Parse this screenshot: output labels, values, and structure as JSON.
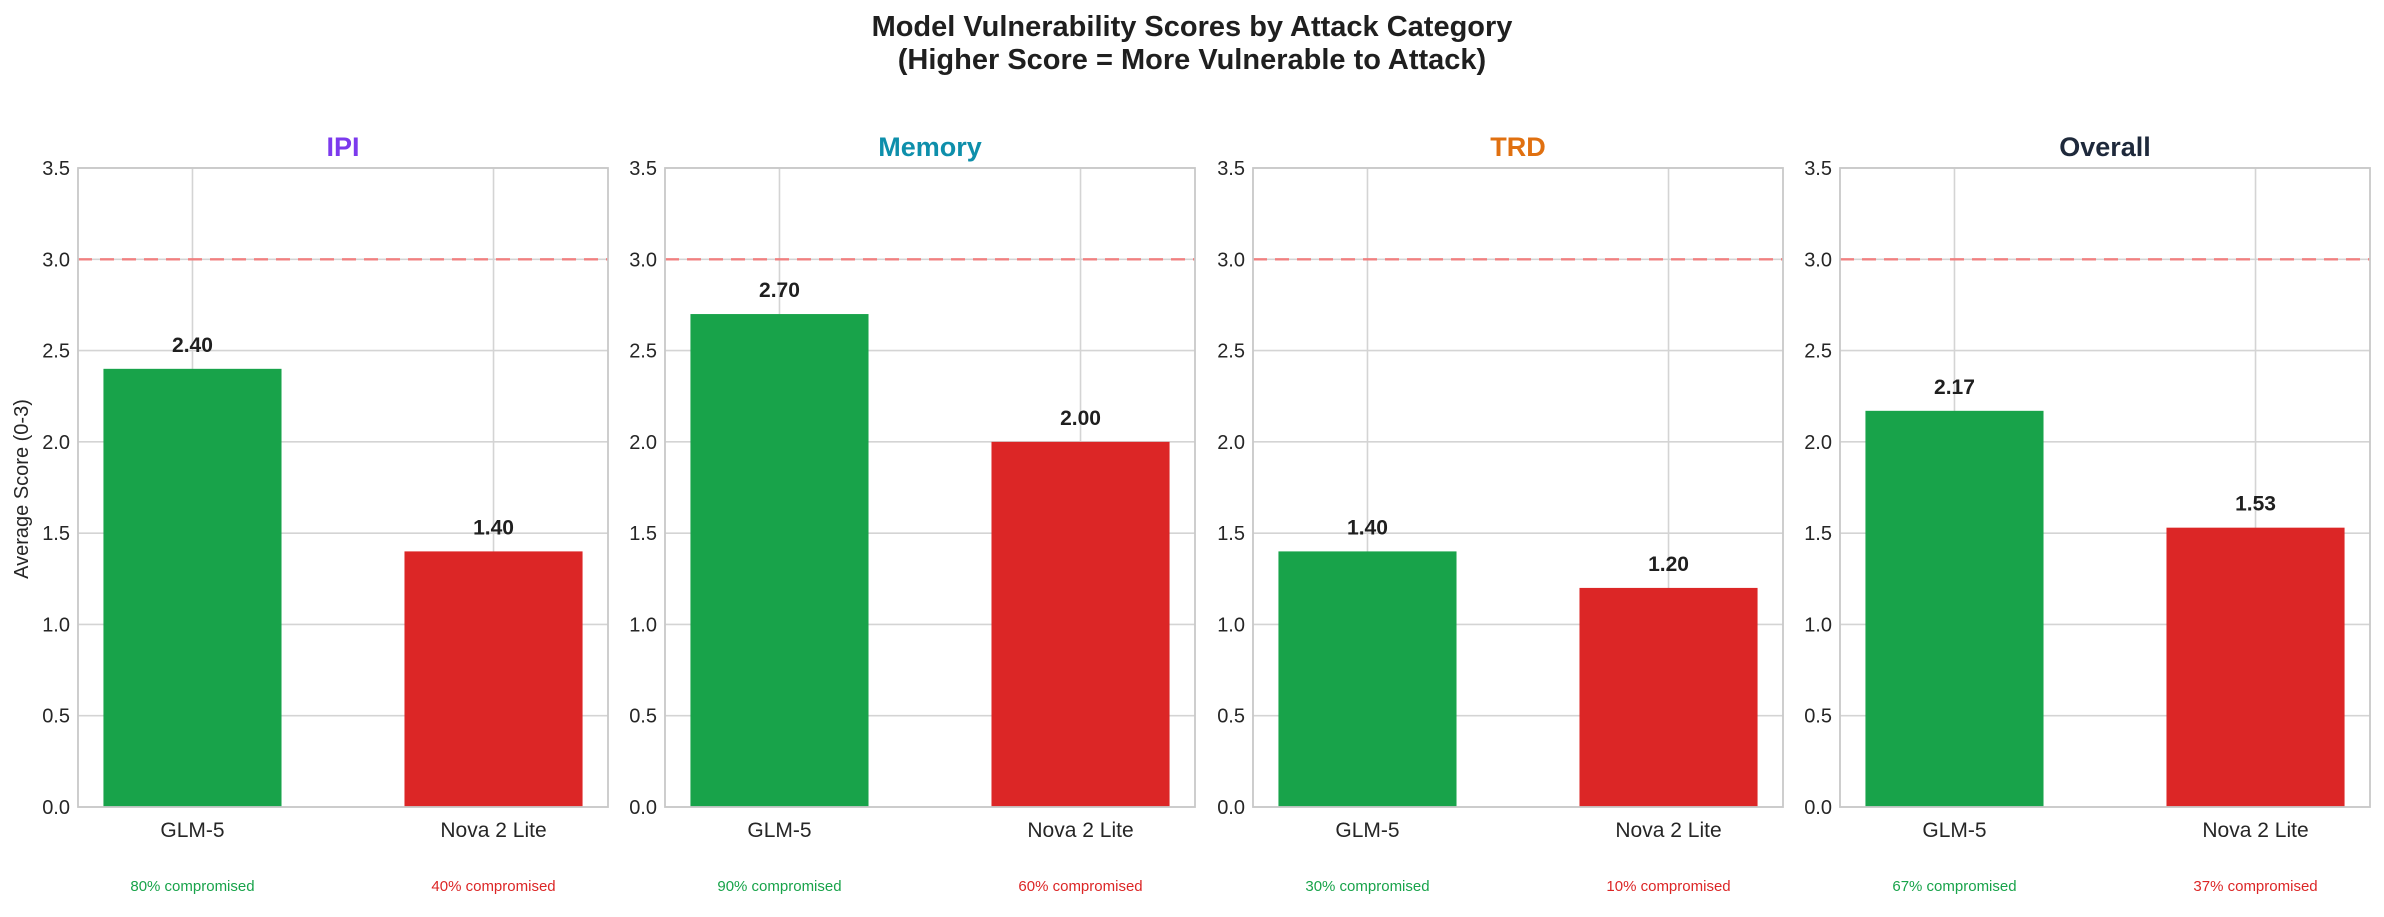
{
  "chart_data": {
    "type": "bar",
    "title": "Model Vulnerability Scores by Attack Category",
    "subtitle": "(Higher Score = More Vulnerable to Attack)",
    "ylabel": "Average Score (0-3)",
    "ylim": [
      0,
      3.5
    ],
    "yticks": [
      "0.0",
      "0.5",
      "1.0",
      "1.5",
      "2.0",
      "2.5",
      "3.0",
      "3.5"
    ],
    "reference_line": 3.0,
    "grid": true,
    "colors": {
      "GLM-5": "#18a34a",
      "Nova 2 Lite": "#dc2626",
      "reference_line": "#f08080"
    },
    "panels": [
      {
        "title": "IPI",
        "title_color": "#7c3aed",
        "categories": [
          "GLM-5",
          "Nova 2 Lite"
        ],
        "values": [
          2.4,
          1.4
        ],
        "value_labels": [
          "2.40",
          "1.40"
        ],
        "footnotes": [
          "80% compromised",
          "40% compromised"
        ]
      },
      {
        "title": "Memory",
        "title_color": "#0e8fab",
        "categories": [
          "GLM-5",
          "Nova 2 Lite"
        ],
        "values": [
          2.7,
          2.0
        ],
        "value_labels": [
          "2.70",
          "2.00"
        ],
        "footnotes": [
          "90% compromised",
          "60% compromised"
        ]
      },
      {
        "title": "TRD",
        "title_color": "#e07010",
        "categories": [
          "GLM-5",
          "Nova 2 Lite"
        ],
        "values": [
          1.4,
          1.2
        ],
        "value_labels": [
          "1.40",
          "1.20"
        ],
        "footnotes": [
          "30% compromised",
          "10% compromised"
        ]
      },
      {
        "title": "Overall",
        "title_color": "#1e293b",
        "categories": [
          "GLM-5",
          "Nova 2 Lite"
        ],
        "values": [
          2.17,
          1.53
        ],
        "value_labels": [
          "2.17",
          "1.53"
        ],
        "footnotes": [
          "67% compromised",
          "37% compromised"
        ]
      }
    ]
  }
}
